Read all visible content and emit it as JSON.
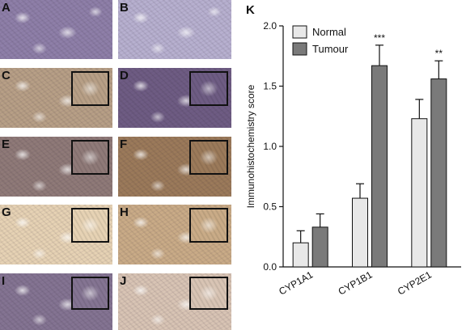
{
  "figure": {
    "panels": [
      {
        "letter": "A",
        "stain": "hematoxylin",
        "has_inset": false
      },
      {
        "letter": "B",
        "stain": "hematoxylin-pale",
        "has_inset": false
      },
      {
        "letter": "C",
        "stain": "light-brown",
        "has_inset": true
      },
      {
        "letter": "D",
        "stain": "purple-dark",
        "has_inset": true
      },
      {
        "letter": "E",
        "stain": "brown-purple",
        "has_inset": true
      },
      {
        "letter": "F",
        "stain": "brown-dark",
        "has_inset": true
      },
      {
        "letter": "G",
        "stain": "pale-tan",
        "has_inset": true
      },
      {
        "letter": "H",
        "stain": "tan",
        "has_inset": true
      },
      {
        "letter": "I",
        "stain": "purple-mid",
        "has_inset": true
      },
      {
        "letter": "J",
        "stain": "pale-tan-purple",
        "has_inset": true
      }
    ],
    "colors": {
      "hematoxylin": "#8e7fa8",
      "hematoxylin-pale": "#b7b0cf",
      "light-brown": "#b79f86",
      "purple-dark": "#6e5c83",
      "brown-purple": "#8f7a78",
      "brown-dark": "#9b7a5a",
      "pale-tan": "#e6d2b4",
      "tan": "#c9ab87",
      "purple-mid": "#847492",
      "pale-tan-purple": "#d8c4b4"
    }
  },
  "chart_data": {
    "panel_letter": "K",
    "type": "bar",
    "categories": [
      "CYP1A1",
      "CYP1B1",
      "CYP2E1"
    ],
    "series": [
      {
        "name": "Normal",
        "values": [
          0.2,
          0.57,
          1.23
        ],
        "errors": [
          0.1,
          0.12,
          0.16
        ],
        "color": "#e8e8e8"
      },
      {
        "name": "Tumour",
        "values": [
          0.33,
          1.67,
          1.56
        ],
        "errors": [
          0.11,
          0.17,
          0.15
        ],
        "color": "#7a7a7a"
      }
    ],
    "ylabel": "Immunohistochemistry score",
    "ylim": [
      0,
      2.0
    ],
    "yticks": [
      "0.0",
      "0.5",
      "1.0",
      "1.5",
      "2.0"
    ],
    "significance": [
      "",
      "***",
      "**"
    ],
    "legend_position": "top-left",
    "grid": false
  }
}
